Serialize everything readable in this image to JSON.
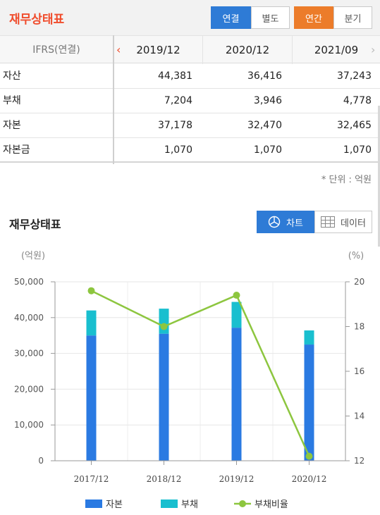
{
  "header": {
    "title": "재무상태표",
    "scope_tabs": [
      "연결",
      "별도"
    ],
    "period_tabs": [
      "연간",
      "분기"
    ]
  },
  "table": {
    "corner_label": "IFRS(연결)",
    "columns": [
      "2019/12",
      "2020/12",
      "2021/09"
    ],
    "prev_arrow": "‹",
    "next_arrow": "›",
    "rows": [
      {
        "label": "자산",
        "values": [
          "44,381",
          "36,416",
          "37,243"
        ]
      },
      {
        "label": "부채",
        "values": [
          "7,204",
          "3,946",
          "4,778"
        ]
      },
      {
        "label": "자본",
        "values": [
          "37,178",
          "32,470",
          "32,465"
        ]
      },
      {
        "label": "자본금",
        "values": [
          "1,070",
          "1,070",
          "1,070"
        ]
      }
    ],
    "unit_note": "* 단위 : 억원"
  },
  "chart_section": {
    "title": "재무상태표",
    "chart_button": "차트",
    "data_button": "데이터"
  },
  "colors": {
    "equity": "#2a7ae2",
    "debt": "#19bfcf",
    "ratio": "#8dc63f",
    "header_accent": "#f04c2c",
    "blue_tab": "#2e7bd6",
    "orange_tab": "#ec7c2a"
  },
  "chart_data": {
    "type": "bar",
    "stacked": true,
    "categories": [
      "2017/12",
      "2018/12",
      "2019/12",
      "2020/12"
    ],
    "series": [
      {
        "name": "자본",
        "values": [
          35000,
          35500,
          37178,
          32470
        ]
      },
      {
        "name": "부채",
        "values": [
          7000,
          7000,
          7204,
          3946
        ]
      }
    ],
    "line_series": {
      "name": "부채비율",
      "axis": "right",
      "values": [
        19.6,
        18.0,
        19.4,
        12.2
      ]
    },
    "ylabel_left": "(억원)",
    "ylabel_right": "(%)",
    "ylim_left": [
      0,
      50000
    ],
    "ylim_right": [
      12,
      20
    ],
    "yticks_left": [
      "0",
      "10,000",
      "20,000",
      "30,000",
      "40,000",
      "50,000"
    ],
    "yticks_right": [
      "12",
      "14",
      "16",
      "18",
      "20"
    ],
    "legend": [
      "자본",
      "부채",
      "부채비율"
    ],
    "legend_position": "bottom",
    "grid": true
  }
}
